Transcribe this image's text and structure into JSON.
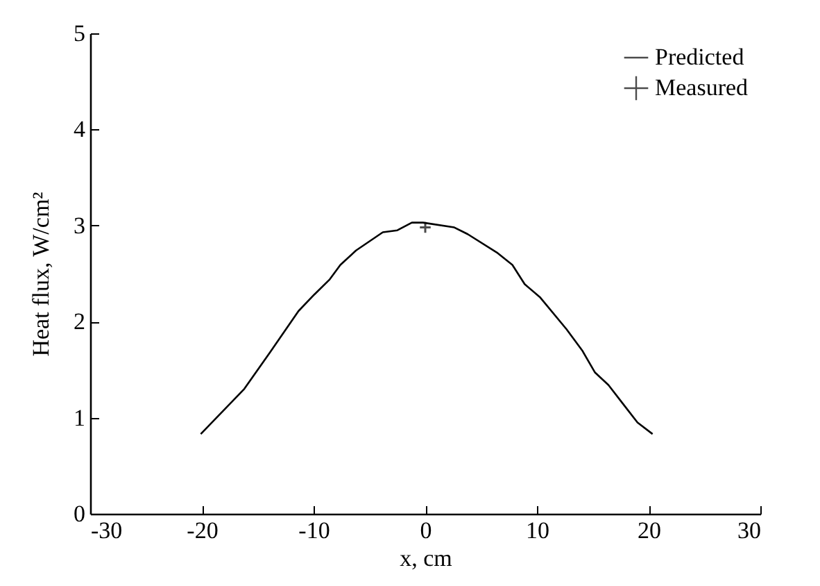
{
  "chart_data": {
    "type": "line",
    "xlabel": "x, cm",
    "ylabel": "Heat flux, W/cm²",
    "xlim": [
      -30,
      30
    ],
    "xticks": [
      -30,
      -20,
      -10,
      0,
      10,
      20,
      30
    ],
    "ylim": [
      0,
      5
    ],
    "yticks": [
      0,
      1,
      2,
      3,
      4,
      5
    ],
    "grid": false,
    "legend": "top right",
    "series": [
      {
        "name": "Predicted",
        "marker": "none",
        "line_style": "solid",
        "color": "#000000",
        "x": [
          -20.1,
          -16.2,
          -13.9,
          -11.35,
          -9.95,
          -8.55,
          -7.6,
          -6.2,
          -3.8,
          -2.5,
          -1.2,
          -0.2,
          2.6,
          3.8,
          6.4,
          7.8,
          8.9,
          10.3,
          12.65,
          14.05,
          15.2,
          16.4,
          17.8,
          19.0,
          20.35
        ],
        "values": [
          0.83,
          1.3,
          1.68,
          2.11,
          2.28,
          2.44,
          2.59,
          2.74,
          2.93,
          2.95,
          3.03,
          3.03,
          2.98,
          2.91,
          2.72,
          2.59,
          2.39,
          2.25,
          1.92,
          1.7,
          1.47,
          1.34,
          1.13,
          0.95,
          0.83
        ]
      },
      {
        "name": "Measured",
        "type": "scatter",
        "marker": "cross",
        "color": "#000000",
        "x": [
          0
        ],
        "values": [
          2.98
        ]
      }
    ]
  }
}
